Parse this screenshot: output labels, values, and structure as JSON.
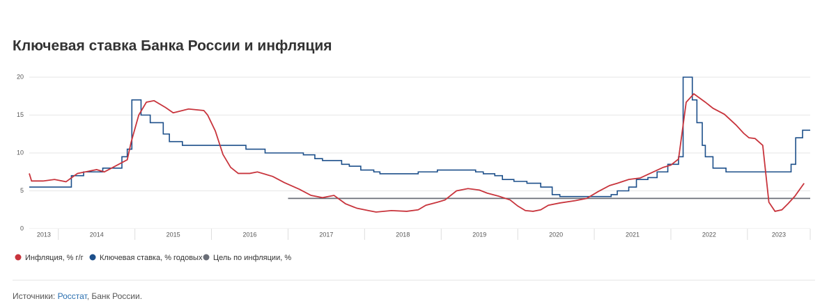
{
  "chart_data": {
    "type": "line",
    "title": "Ключевая ставка Банка России и инфляция",
    "xlim": [
      2013.62,
      2023.82
    ],
    "xticks": [
      2014,
      2015,
      2016,
      2017,
      2018,
      2019,
      2020,
      2021,
      2022,
      2023
    ],
    "year_labels": [
      "2013",
      "2014",
      "2015",
      "2016",
      "2017",
      "2018",
      "2019",
      "2020",
      "2021",
      "2022",
      "2023"
    ],
    "ylim": [
      0,
      20
    ],
    "yticks": [
      0,
      5,
      10,
      15,
      20
    ],
    "grid": true,
    "legend": "bottom",
    "series": [
      {
        "name": "Инфляция, % г/г",
        "color": "#c8343c",
        "step": false,
        "x": [
          2013.62,
          2013.65,
          2013.8,
          2013.95,
          2014.1,
          2014.25,
          2014.5,
          2014.6,
          2014.75,
          2014.9,
          2014.95,
          2015.05,
          2015.15,
          2015.25,
          2015.4,
          2015.5,
          2015.7,
          2015.9,
          2015.95,
          2016.05,
          2016.15,
          2016.25,
          2016.35,
          2016.5,
          2016.6,
          2016.8,
          2016.95,
          2017.15,
          2017.3,
          2017.45,
          2017.6,
          2017.75,
          2017.9,
          2018.05,
          2018.15,
          2018.35,
          2018.55,
          2018.7,
          2018.8,
          2018.95,
          2019.05,
          2019.2,
          2019.35,
          2019.5,
          2019.6,
          2019.75,
          2019.9,
          2020.0,
          2020.1,
          2020.2,
          2020.3,
          2020.4,
          2020.55,
          2020.75,
          2020.9,
          2021.05,
          2021.2,
          2021.3,
          2021.45,
          2021.6,
          2021.75,
          2021.9,
          2022.0,
          2022.1,
          2022.2,
          2022.3,
          2022.45,
          2022.55,
          2022.7,
          2022.85,
          2022.95,
          2023.02,
          2023.1,
          2023.2,
          2023.28,
          2023.36,
          2023.45,
          2023.53,
          2023.62,
          2023.74
        ],
        "values": [
          7.3,
          6.3,
          6.3,
          6.5,
          6.2,
          7.3,
          7.8,
          7.5,
          8.3,
          9.1,
          11.4,
          15.0,
          16.7,
          16.9,
          16.0,
          15.3,
          15.8,
          15.6,
          15.0,
          12.9,
          9.8,
          8.1,
          7.3,
          7.3,
          7.5,
          6.9,
          6.1,
          5.2,
          4.4,
          4.1,
          4.4,
          3.3,
          2.7,
          2.4,
          2.2,
          2.4,
          2.3,
          2.5,
          3.1,
          3.5,
          3.8,
          5.0,
          5.3,
          5.1,
          4.7,
          4.3,
          3.8,
          3.0,
          2.4,
          2.3,
          2.5,
          3.1,
          3.4,
          3.7,
          4.0,
          4.9,
          5.7,
          6.0,
          6.5,
          6.7,
          7.4,
          8.1,
          8.4,
          9.2,
          16.7,
          17.8,
          16.7,
          15.9,
          15.1,
          13.7,
          12.6,
          12.0,
          11.9,
          11.0,
          3.5,
          2.3,
          2.5,
          3.3,
          4.3,
          6.0
        ]
      },
      {
        "name": "Ключевая ставка, % годовых",
        "color": "#1c4f8a",
        "step": true,
        "x": [
          2013.62,
          2014.17,
          2014.33,
          2014.58,
          2014.83,
          2014.9,
          2014.96,
          2015.08,
          2015.2,
          2015.37,
          2015.45,
          2015.62,
          2016.45,
          2016.7,
          2017.2,
          2017.35,
          2017.45,
          2017.7,
          2017.8,
          2017.95,
          2018.12,
          2018.2,
          2018.7,
          2018.95,
          2019.45,
          2019.55,
          2019.7,
          2019.8,
          2019.95,
          2020.12,
          2020.3,
          2020.45,
          2020.55,
          2021.22,
          2021.3,
          2021.45,
          2021.55,
          2021.7,
          2021.82,
          2021.96,
          2022.1,
          2022.16,
          2022.28,
          2022.34,
          2022.41,
          2022.45,
          2022.55,
          2022.72,
          2023.57,
          2023.63,
          2023.72
        ],
        "values": [
          5.5,
          7.0,
          7.5,
          8.0,
          9.5,
          10.5,
          17.0,
          15.0,
          14.0,
          12.5,
          11.5,
          11.0,
          10.5,
          10.0,
          9.75,
          9.25,
          9.0,
          8.5,
          8.25,
          7.75,
          7.5,
          7.25,
          7.5,
          7.75,
          7.5,
          7.25,
          7.0,
          6.5,
          6.25,
          6.0,
          5.5,
          4.5,
          4.25,
          4.5,
          5.0,
          5.5,
          6.5,
          6.75,
          7.5,
          8.5,
          9.5,
          20.0,
          17.0,
          14.0,
          11.0,
          9.5,
          8.0,
          7.5,
          8.5,
          12.0,
          13.0
        ]
      },
      {
        "name": "Цель по инфляции, %",
        "color": "#6b6f78",
        "step": false,
        "x": [
          2017,
          2023.82
        ],
        "values": [
          4,
          4
        ]
      }
    ],
    "source_prefix": "Источники:",
    "source_link": "Росстат",
    "source_rest": ", Банк России."
  }
}
